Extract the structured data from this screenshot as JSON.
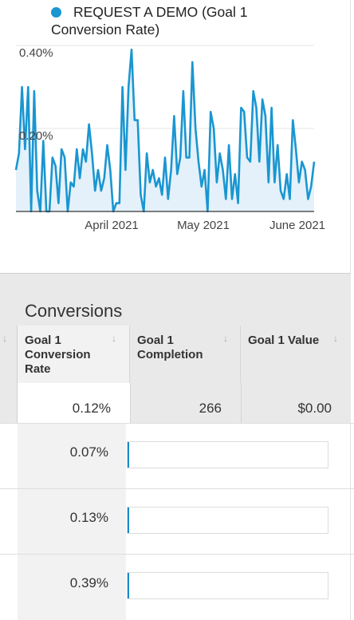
{
  "legend": {
    "label_line1": "REQUEST A DEMO (Goal 1",
    "label_line2": "Conversion Rate)",
    "color": "#1a96d1"
  },
  "chart_data": {
    "type": "area",
    "series": [
      {
        "name": "REQUEST A DEMO (Goal 1 Conversion Rate)",
        "values": [
          0.1,
          0.14,
          0.3,
          0.15,
          0.3,
          0.0,
          0.29,
          0.05,
          0.0,
          0.17,
          0.0,
          0.0,
          0.13,
          0.11,
          0.02,
          0.15,
          0.13,
          0.0,
          0.07,
          0.06,
          0.15,
          0.08,
          0.15,
          0.12,
          0.21,
          0.14,
          0.05,
          0.1,
          0.05,
          0.08,
          0.16,
          0.1,
          0.0,
          0.02,
          0.02,
          0.3,
          0.1,
          0.3,
          0.39,
          0.22,
          0.22,
          0.04,
          0.0,
          0.14,
          0.07,
          0.1,
          0.06,
          0.08,
          0.04,
          0.13,
          0.03,
          0.1,
          0.23,
          0.09,
          0.13,
          0.29,
          0.13,
          0.13,
          0.36,
          0.2,
          0.12,
          0.06,
          0.1,
          0.0,
          0.24,
          0.2,
          0.07,
          0.14,
          0.1,
          0.03,
          0.16,
          0.03,
          0.09,
          0.02,
          0.25,
          0.24,
          0.13,
          0.12,
          0.29,
          0.25,
          0.12,
          0.27,
          0.23,
          0.07,
          0.25,
          0.07,
          0.16,
          0.05,
          0.03,
          0.09,
          0.03,
          0.22,
          0.15,
          0.07,
          0.12,
          0.1,
          0.03,
          0.06,
          0.12
        ]
      }
    ],
    "x_tick_labels": [
      "April 2021",
      "May 2021",
      "June 2021"
    ],
    "y_tick_labels": [
      "0.40%",
      "0.20%"
    ],
    "ylim": [
      0,
      0.4
    ],
    "grid": true,
    "line_color": "#1a96d1",
    "fill_color": "#e4f1fa"
  },
  "table": {
    "group_header": "Conversions",
    "sort_arrow": "↓",
    "columns": [
      {
        "line1": "Goal 1",
        "line2": "Conversion",
        "line3": "Rate"
      },
      {
        "line1": "Goal 1",
        "line2": "Completion"
      },
      {
        "line1": "Goal 1 Value"
      }
    ],
    "totals": {
      "rate": "0.12%",
      "completion": "266",
      "value": "$0.00"
    },
    "rows": [
      {
        "rate": "0.07%",
        "bar_fraction": 0.004
      },
      {
        "rate": "0.13%",
        "bar_fraction": 0.004
      },
      {
        "rate": "0.39%",
        "bar_fraction": 0.004
      }
    ],
    "bar_color": "#1a88c9"
  }
}
